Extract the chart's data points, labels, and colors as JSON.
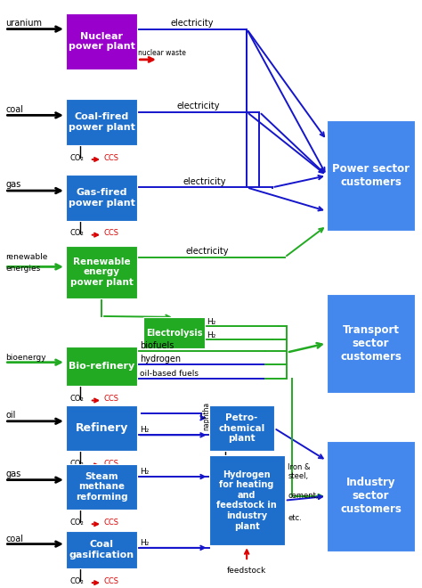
{
  "fig_width": 4.74,
  "fig_height": 6.6,
  "dpi": 100,
  "bg_color": "#ffffff",
  "blue_dark": "#1565c8",
  "blue_box": "#1e6fcc",
  "green_box": "#22aa22",
  "purple_box": "#9900cc",
  "cust_box": "#4488ee",
  "white": "#ffffff",
  "black": "#000000",
  "ablue": "#1515cc",
  "agreen": "#22aa22",
  "ared": "#dd0000",
  "ablack": "#000000",
  "xlim": [
    0,
    10
  ],
  "ylim": [
    0,
    14
  ]
}
